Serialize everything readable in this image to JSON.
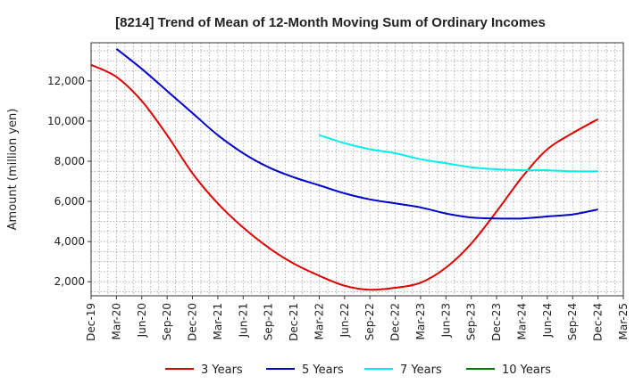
{
  "chart_data": {
    "type": "line",
    "title": "[8214]  Trend of Mean of 12-Month Moving Sum of Ordinary Incomes",
    "xlabel": "",
    "ylabel": "Amount (million yen)",
    "x": [
      "Dec-19",
      "Mar-20",
      "Jun-20",
      "Sep-20",
      "Dec-20",
      "Mar-21",
      "Jun-21",
      "Sep-21",
      "Dec-21",
      "Mar-22",
      "Jun-22",
      "Sep-22",
      "Dec-22",
      "Mar-23",
      "Jun-23",
      "Sep-23",
      "Dec-23",
      "Mar-24",
      "Jun-24",
      "Sep-24",
      "Dec-24",
      "Mar-25"
    ],
    "yticks": [
      2000,
      4000,
      6000,
      8000,
      10000,
      12000
    ],
    "ytick_labels": [
      "2,000",
      "4,000",
      "6,000",
      "8,000",
      "10,000",
      "12,000"
    ],
    "ylim": [
      1300,
      13900
    ],
    "grid": true,
    "legend_position": "bottom",
    "series": [
      {
        "name": "3 Years",
        "color": "#dd0000",
        "values": [
          12800,
          12200,
          11000,
          9300,
          7400,
          5900,
          4700,
          3700,
          2900,
          2300,
          1800,
          1600,
          1700,
          1950,
          2700,
          3900,
          5500,
          7200,
          8600,
          9400,
          10100,
          null
        ]
      },
      {
        "name": "5 Years",
        "color": "#0000cc",
        "values": [
          null,
          13600,
          12600,
          11500,
          10400,
          9300,
          8400,
          7700,
          7200,
          6800,
          6400,
          6100,
          5900,
          5700,
          5400,
          5200,
          5150,
          5150,
          5250,
          5350,
          5600,
          null
        ]
      },
      {
        "name": "7 Years",
        "color": "#00eeee",
        "values": [
          null,
          null,
          null,
          null,
          null,
          null,
          null,
          null,
          null,
          9300,
          8900,
          8600,
          8400,
          8100,
          7900,
          7700,
          7600,
          7550,
          7550,
          7500,
          7500,
          null
        ]
      },
      {
        "name": "10 Years",
        "color": "#007700",
        "values": [
          null,
          null,
          null,
          null,
          null,
          null,
          null,
          null,
          null,
          null,
          null,
          null,
          null,
          null,
          null,
          null,
          null,
          null,
          null,
          null,
          null,
          null
        ]
      }
    ]
  }
}
